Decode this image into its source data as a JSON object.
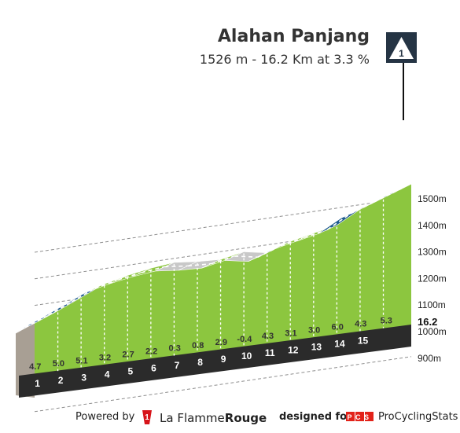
{
  "header": {
    "title": "Alahan Panjang",
    "subtitle": "1526 m - 16.2 Km at 3.3 %",
    "category_badge": "1"
  },
  "chart_data": {
    "type": "area",
    "title": "Alahan Panjang",
    "subtitle": "1526 m - 16.2 Km at 3.3 %",
    "x": [
      0,
      1,
      2,
      3,
      4,
      5,
      6,
      7,
      8,
      9,
      10,
      11,
      12,
      13,
      14,
      15,
      16.2
    ],
    "km_labels": [
      "1",
      "2",
      "3",
      "4",
      "5",
      "6",
      "7",
      "8",
      "9",
      "10",
      "11",
      "12",
      "13",
      "14",
      "15"
    ],
    "gradients": [
      "4.7",
      "5.0",
      "5.1",
      "3.2",
      "2.7",
      "2.2",
      "0.3",
      "0.8",
      "2.9",
      "-0.4",
      "4.3",
      "3.1",
      "3.0",
      "6.0",
      "4.3",
      "5.3"
    ],
    "gradient_values": [
      4.7,
      5.0,
      5.1,
      3.2,
      2.7,
      2.2,
      0.3,
      0.8,
      2.9,
      -0.4,
      4.3,
      3.1,
      3.0,
      6.0,
      4.3,
      5.3
    ],
    "elevation": [
      1002,
      1049,
      1099,
      1150,
      1182,
      1209,
      1231,
      1234,
      1242,
      1271,
      1267,
      1310,
      1341,
      1371,
      1431,
      1474,
      1526
    ],
    "y_ticks": [
      "900m",
      "1000m",
      "1100m",
      "1200m",
      "1300m",
      "1400m",
      "1500m"
    ],
    "y_tick_values": [
      900,
      1000,
      1100,
      1200,
      1300,
      1400,
      1500
    ],
    "end_label": "16.2",
    "ylim": [
      700,
      1540
    ],
    "colors": {
      "climb_fill": "#8cc63f",
      "steep_band": "#1e5b8e",
      "moderate_band": "#8cc63f",
      "flat_band": "#c8c8c8",
      "base_strip": "#2b2b2b",
      "side_wall": "#a89f94",
      "label_color": "#333333"
    }
  },
  "footer": {
    "powered_by": "Powered by",
    "brand_la": "La Flamme",
    "brand_rouge": "Rouge",
    "designed_for": "designed for",
    "pcs_badge": "PCS",
    "pcs_name": "ProCyclingStats"
  }
}
